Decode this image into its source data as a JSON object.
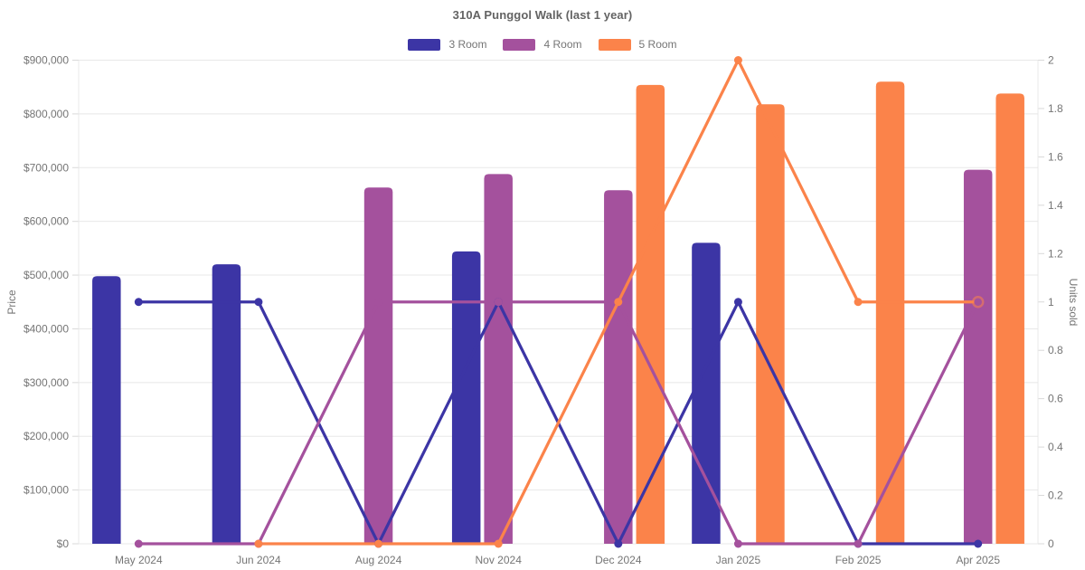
{
  "chart_data": {
    "type": "combo_bar_line",
    "title": "310A Punggol Walk (last 1 year)",
    "categories": [
      "May 2024",
      "Jun 2024",
      "Aug 2024",
      "Nov 2024",
      "Dec 2024",
      "Jan 2025",
      "Feb 2025",
      "Apr 2025"
    ],
    "legend_position": "top",
    "grid": "horizontal-only",
    "left_axis": {
      "label": "Price",
      "min": 0,
      "max": 900000,
      "tick_labels": [
        "$0",
        "$100,000",
        "$200,000",
        "$300,000",
        "$400,000",
        "$500,000",
        "$600,000",
        "$700,000",
        "$800,000",
        "$900,000"
      ]
    },
    "right_axis": {
      "label": "Units sold",
      "min": 0,
      "max": 2,
      "tick_labels": [
        "0",
        "0.2",
        "0.4",
        "0.6",
        "0.8",
        "1",
        "1.2",
        "1.4",
        "1.6",
        "1.8",
        "2"
      ]
    },
    "series": [
      {
        "name": "3 Room",
        "color": "#3C35A5",
        "bar_prices": [
          498000,
          520000,
          null,
          544000,
          null,
          560000,
          null,
          null
        ],
        "line_units": [
          1,
          1,
          0,
          1,
          0,
          1,
          0,
          0
        ],
        "hollow_last_point": false
      },
      {
        "name": "4 Room",
        "color": "#A4519D",
        "bar_prices": [
          null,
          null,
          663000,
          688000,
          658000,
          null,
          null,
          696000
        ],
        "line_units": [
          0,
          0,
          1,
          1,
          1,
          0,
          0,
          1
        ],
        "hollow_last_point": false
      },
      {
        "name": "5 Room",
        "color": "#FB834A",
        "bar_prices": [
          null,
          null,
          null,
          null,
          854000,
          818000,
          860000,
          838000
        ],
        "line_units": [
          null,
          0,
          0,
          0,
          1,
          2,
          1,
          1
        ],
        "hollow_last_point": true
      }
    ]
  }
}
